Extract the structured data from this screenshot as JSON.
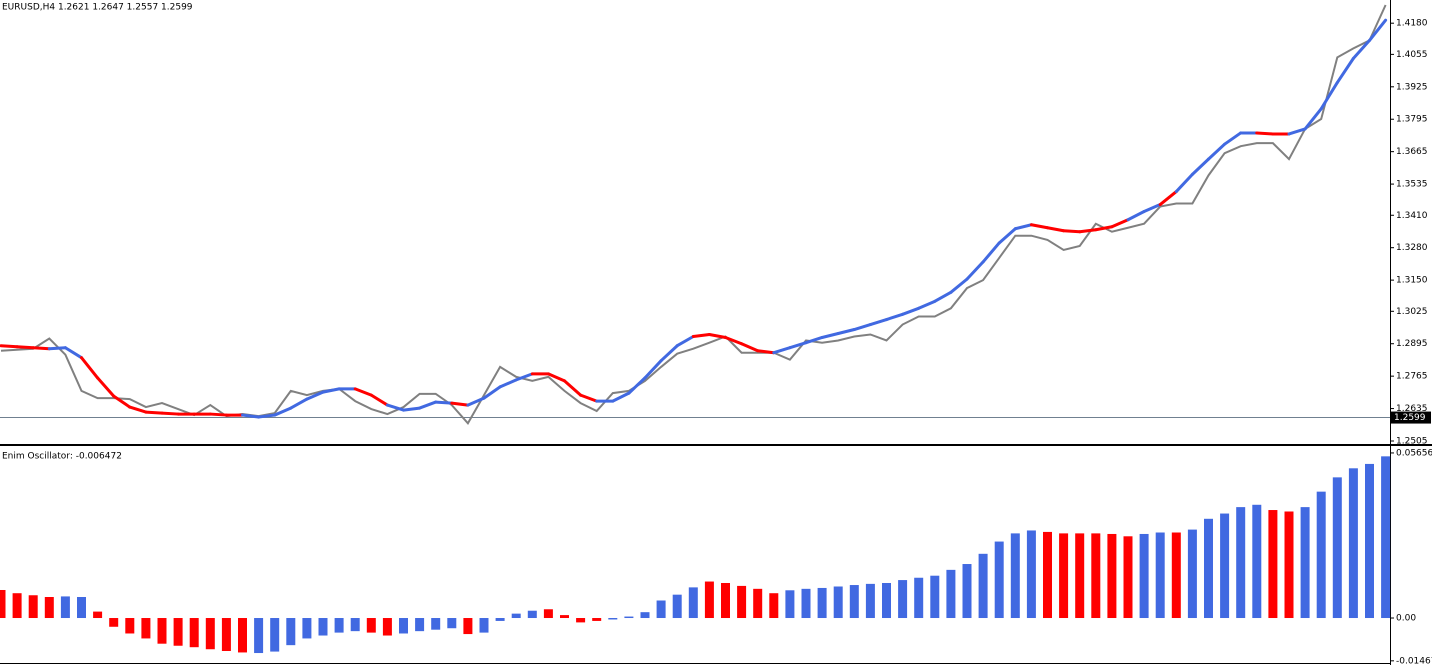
{
  "chart_data": [
    {
      "type": "line",
      "title": "EURUSD,H4  1.2621 1.2647 1.2557 1.2599",
      "ylim": [
        1.2497,
        1.4273
      ],
      "yticks": [
        {
          "value": 1.418,
          "label": "1.4180"
        },
        1.4055,
        1.3925,
        1.3795,
        1.3665,
        1.3535,
        {
          "value": 1.341,
          "label": "1.3410"
        },
        {
          "value": 1.328,
          "label": "1.3280"
        },
        {
          "value": 1.315,
          "label": "1.3150"
        },
        1.3025,
        1.2895,
        1.2765,
        1.2635,
        1.2505
      ],
      "last_price": 1.2599,
      "series": [
        {
          "color": "#808080",
          "values": [
            1.2867,
            1.2871,
            1.2875,
            1.2916,
            1.2851,
            1.2706,
            1.2677,
            1.2677,
            1.2673,
            1.2641,
            1.2657,
            1.2633,
            1.2609,
            1.2649,
            1.2605,
            1.2613,
            1.2605,
            1.2617,
            1.2706,
            1.2689,
            1.2706,
            1.2714,
            1.2665,
            1.2633,
            1.2613,
            1.2641,
            1.2694,
            1.2694,
            1.2649,
            1.2576,
            1.2689,
            1.2802,
            1.2762,
            1.2746,
            1.2762,
            1.2706,
            1.2657,
            1.2625,
            1.2697,
            1.2706,
            1.2746,
            1.2802,
            1.2855,
            1.2875,
            1.2899,
            1.2924,
            1.2859,
            1.2859,
            1.2859,
            1.2831,
            1.2908,
            1.2899,
            1.2908,
            1.2924,
            1.2932,
            1.2908,
            1.2972,
            1.3004,
            1.3004,
            1.3037,
            1.3118,
            1.315,
            1.3239,
            1.3328,
            1.3328,
            1.3311,
            1.3271,
            1.3287,
            1.3376,
            1.3344,
            1.336,
            1.3376,
            1.3445,
            1.3457,
            1.3457,
            1.357,
            1.3659,
            1.3687,
            1.3699,
            1.3699,
            1.3635,
            1.3756,
            1.3796,
            1.4043,
            1.4079,
            1.4111,
            1.4253
          ]
        },
        {
          "colors": [
            "#ff0000",
            "#ff0000",
            "#ff0000",
            "#ff0000",
            "#4169e1",
            "#4169e1",
            "#ff0000",
            "#ff0000",
            "#ff0000",
            "#ff0000",
            "#ff0000",
            "#ff0000",
            "#ff0000",
            "#ff0000",
            "#ff0000",
            "#ff0000",
            "#4169e1",
            "#4169e1",
            "#4169e1",
            "#4169e1",
            "#4169e1",
            "#4169e1",
            "#4169e1",
            "#ff0000",
            "#ff0000",
            "#4169e1",
            "#4169e1",
            "#4169e1",
            "#4169e1",
            "#ff0000",
            "#4169e1",
            "#4169e1",
            "#4169e1",
            "#4169e1",
            "#ff0000",
            "#ff0000",
            "#ff0000",
            "#ff0000",
            "#4169e1",
            "#4169e1",
            "#4169e1",
            "#4169e1",
            "#4169e1",
            "#4169e1",
            "#ff0000",
            "#ff0000",
            "#ff0000",
            "#ff0000",
            "#ff0000",
            "#4169e1",
            "#4169e1",
            "#4169e1",
            "#4169e1",
            "#4169e1",
            "#4169e1",
            "#4169e1",
            "#4169e1",
            "#4169e1",
            "#4169e1",
            "#4169e1",
            "#4169e1",
            "#4169e1",
            "#4169e1",
            "#4169e1",
            "#4169e1",
            "#ff0000",
            "#ff0000",
            "#ff0000",
            "#ff0000",
            "#ff0000",
            "#ff0000",
            "#4169e1",
            "#4169e1",
            "#ff0000",
            "#4169e1",
            "#4169e1",
            "#4169e1",
            "#4169e1",
            "#4169e1",
            "#ff0000",
            "#ff0000",
            "#4169e1",
            "#4169e1",
            "#4169e1",
            "#4169e1",
            "#4169e1",
            "#4169e1"
          ],
          "values": [
            1.2887,
            1.2883,
            1.2879,
            1.2875,
            1.2879,
            1.2839,
            1.2758,
            1.2685,
            1.2641,
            1.2621,
            1.2617,
            1.2613,
            1.2613,
            1.2613,
            1.2609,
            1.2609,
            1.2601,
            1.2609,
            1.2637,
            1.2673,
            1.2701,
            1.2714,
            1.2714,
            1.2689,
            1.2649,
            1.2629,
            1.2637,
            1.2661,
            1.2657,
            1.2649,
            1.2677,
            1.2722,
            1.275,
            1.2774,
            1.2774,
            1.2746,
            1.2689,
            1.2665,
            1.2665,
            1.2697,
            1.2758,
            1.2827,
            1.2887,
            1.2924,
            1.2932,
            1.292,
            1.2895,
            1.2867,
            1.2859,
            1.2879,
            1.2899,
            1.292,
            1.2936,
            1.2952,
            1.2972,
            1.2992,
            1.3013,
            1.3037,
            1.3065,
            1.3101,
            1.3154,
            1.3223,
            1.3299,
            1.3356,
            1.3372,
            1.336,
            1.3348,
            1.3344,
            1.3352,
            1.3364,
            1.3392,
            1.3425,
            1.3453,
            1.3505,
            1.3574,
            1.3635,
            1.3695,
            1.374,
            1.374,
            1.3736,
            1.3736,
            1.3756,
            1.3837,
            1.3942,
            1.4039,
            1.4111,
            1.4192
          ]
        }
      ]
    },
    {
      "type": "bar",
      "title": "Enim Oscillator: -0.006472",
      "ylim": [
        -0.0161,
        0.0586
      ],
      "yticks": [
        0.05656,
        {
          "value": 0,
          "label": "0.00"
        },
        -0.01467
      ],
      "colors": [
        "#ff0000",
        "#ff0000",
        "#ff0000",
        "#ff0000",
        "#4169e1",
        "#4169e1",
        "#ff0000",
        "#ff0000",
        "#ff0000",
        "#ff0000",
        "#ff0000",
        "#ff0000",
        "#ff0000",
        "#ff0000",
        "#ff0000",
        "#ff0000",
        "#4169e1",
        "#4169e1",
        "#4169e1",
        "#4169e1",
        "#4169e1",
        "#4169e1",
        "#4169e1",
        "#ff0000",
        "#ff0000",
        "#4169e1",
        "#4169e1",
        "#4169e1",
        "#4169e1",
        "#ff0000",
        "#4169e1",
        "#4169e1",
        "#4169e1",
        "#4169e1",
        "#ff0000",
        "#ff0000",
        "#ff0000",
        "#ff0000",
        "#4169e1",
        "#4169e1",
        "#4169e1",
        "#4169e1",
        "#4169e1",
        "#4169e1",
        "#ff0000",
        "#ff0000",
        "#ff0000",
        "#ff0000",
        "#ff0000",
        "#4169e1",
        "#4169e1",
        "#4169e1",
        "#4169e1",
        "#4169e1",
        "#4169e1",
        "#4169e1",
        "#4169e1",
        "#4169e1",
        "#4169e1",
        "#4169e1",
        "#4169e1",
        "#4169e1",
        "#4169e1",
        "#4169e1",
        "#4169e1",
        "#ff0000",
        "#ff0000",
        "#ff0000",
        "#ff0000",
        "#ff0000",
        "#ff0000",
        "#4169e1",
        "#4169e1",
        "#ff0000",
        "#4169e1",
        "#4169e1",
        "#4169e1",
        "#4169e1",
        "#4169e1",
        "#ff0000",
        "#ff0000",
        "#4169e1",
        "#4169e1",
        "#4169e1",
        "#4169e1",
        "#4169e1",
        "#4169e1"
      ],
      "values": [
        0.0096,
        0.0085,
        0.0078,
        0.0072,
        0.0074,
        0.0072,
        0.0022,
        -0.003,
        -0.0053,
        -0.007,
        -0.0088,
        -0.0095,
        -0.01,
        -0.0107,
        -0.0113,
        -0.0118,
        -0.012,
        -0.0115,
        -0.0093,
        -0.007,
        -0.006,
        -0.005,
        -0.0045,
        -0.005,
        -0.006,
        -0.0053,
        -0.0045,
        -0.004,
        -0.0035,
        -0.0055,
        -0.005,
        -0.001,
        0.0015,
        0.0025,
        0.003,
        0.001,
        -0.0015,
        -0.001,
        -0.0005,
        0.0005,
        0.002,
        0.006,
        0.008,
        0.0105,
        0.0125,
        0.012,
        0.011,
        0.01,
        0.0085,
        0.0095,
        0.01,
        0.0103,
        0.0108,
        0.0113,
        0.0117,
        0.012,
        0.013,
        0.0138,
        0.0145,
        0.0165,
        0.0185,
        0.022,
        0.0262,
        0.029,
        0.03,
        0.0295,
        0.029,
        0.029,
        0.029,
        0.0288,
        0.028,
        0.0288,
        0.0293,
        0.0293,
        0.0303,
        0.034,
        0.0358,
        0.038,
        0.0388,
        0.037,
        0.0365,
        0.038,
        0.0433,
        0.0482,
        0.0513,
        0.0528,
        0.0554
      ]
    }
  ]
}
